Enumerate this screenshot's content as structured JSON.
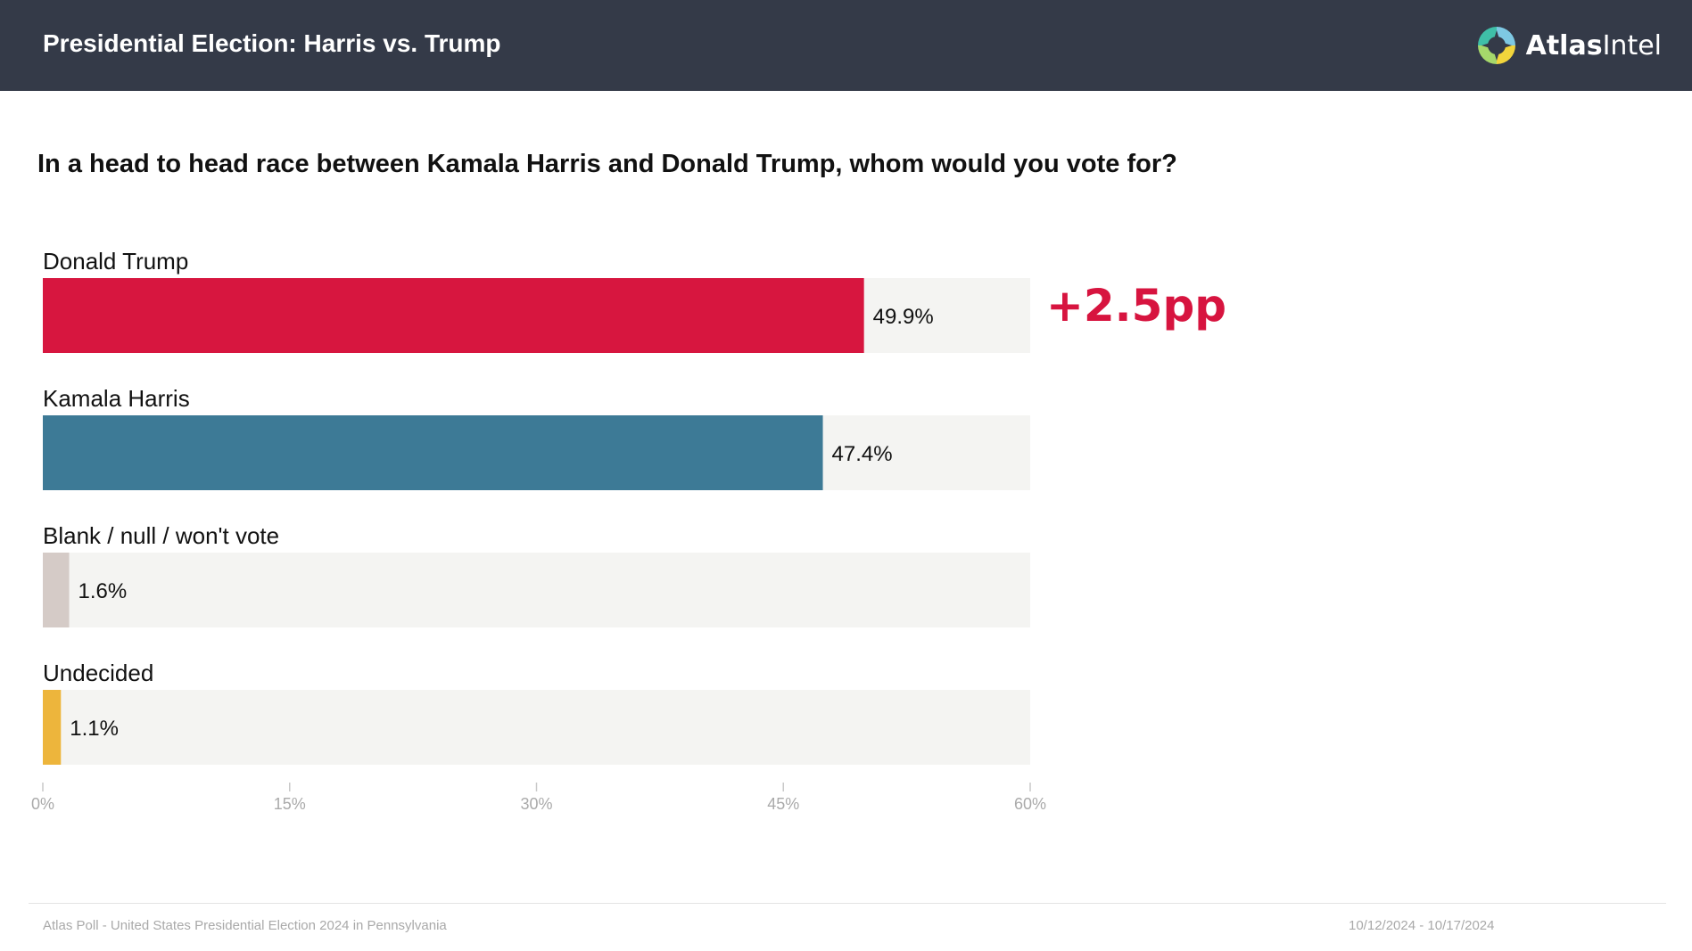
{
  "header": {
    "title": "Presidential Election: Harris vs. Trump",
    "brand_bold": "Atlas",
    "brand_light": "Intel"
  },
  "question": "In a head to head race between Kamala Harris and Donald Trump, whom would you vote for?",
  "delta_label": "+2.5pp",
  "footer": {
    "source": "Atlas Poll - United States Presidential Election 2024 in Pennsylvania",
    "dates": "10/12/2024 - 10/17/2024"
  },
  "chart_data": {
    "type": "bar",
    "orientation": "horizontal",
    "title": "In a head to head race between Kamala Harris and Donald Trump, whom would you vote for?",
    "categories": [
      "Donald Trump",
      "Kamala Harris",
      "Blank / null / won't vote",
      "Undecided"
    ],
    "values": [
      49.9,
      47.4,
      1.6,
      1.1
    ],
    "value_labels": [
      "49.9%",
      "47.4%",
      "1.6%",
      "1.1%"
    ],
    "colors": [
      "#d7163f",
      "#3d7a96",
      "#d5cbc7",
      "#edb53c"
    ],
    "track_color": "#f4f4f2",
    "xlim": [
      0,
      60
    ],
    "xticks": [
      0,
      15,
      30,
      45,
      60
    ],
    "xtick_labels": [
      "0%",
      "15%",
      "30%",
      "45%",
      "60%"
    ],
    "xlabel": "",
    "ylabel": "",
    "grid": false
  }
}
